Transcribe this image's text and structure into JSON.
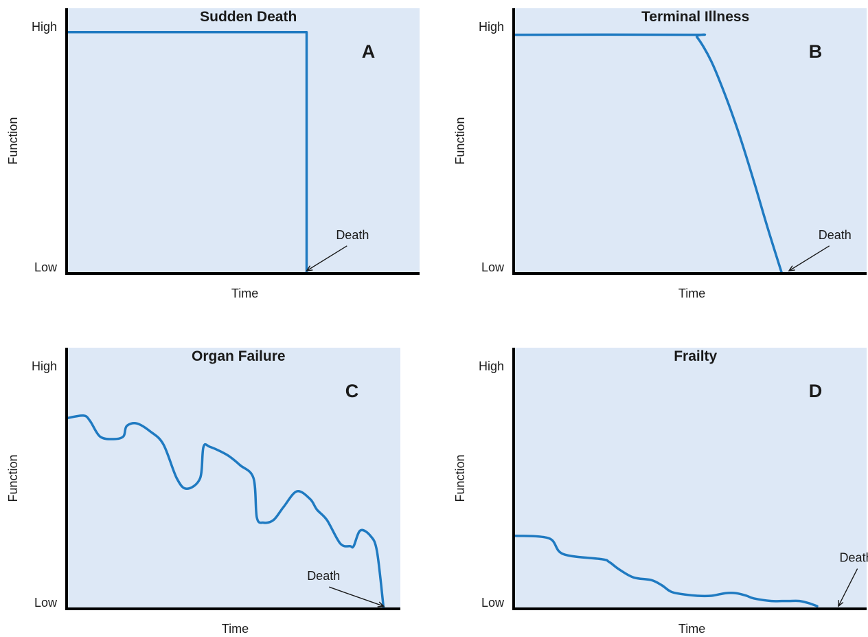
{
  "colors": {
    "plot_bg": "#dde8f6",
    "line": "#1f7ac1",
    "axis": "#000000"
  },
  "chart_data": [
    {
      "type": "line",
      "title": "Sudden Death",
      "panel_label": "A",
      "xlabel": "Time",
      "ylabel": "Function",
      "yticks": [
        "High",
        "Low"
      ],
      "xlim": [
        0,
        100
      ],
      "ylim": [
        0,
        100
      ],
      "annotation": {
        "text": "Death",
        "point": [
          68,
          1
        ],
        "text_at": [
          81,
          13
        ]
      },
      "series": [
        {
          "x": [
            0,
            68,
            68
          ],
          "y": [
            91,
            91,
            0
          ]
        }
      ]
    },
    {
      "type": "line",
      "title": "Terminal Illness",
      "panel_label": "B",
      "xlabel": "Time",
      "ylabel": "Function",
      "yticks": [
        "High",
        "Low"
      ],
      "xlim": [
        0,
        100
      ],
      "ylim": [
        0,
        100
      ],
      "annotation": {
        "text": "Death",
        "point": [
          78,
          1
        ],
        "text_at": [
          91,
          13
        ]
      },
      "series": [
        {
          "x": [
            0,
            50,
            52,
            56,
            60,
            64,
            68,
            72,
            76
          ],
          "y": [
            90,
            90,
            89,
            80,
            67,
            52,
            35,
            17,
            0
          ]
        }
      ]
    },
    {
      "type": "line",
      "title": "Organ Failure",
      "panel_label": "C",
      "xlabel": "Time",
      "ylabel": "Function",
      "yticks": [
        "High",
        "Low"
      ],
      "xlim": [
        0,
        100
      ],
      "ylim": [
        0,
        100
      ],
      "annotation": {
        "text": "Death",
        "point": [
          95,
          1
        ],
        "text_at": [
          77,
          11
        ]
      },
      "series": [
        {
          "x": [
            0,
            5,
            7,
            10,
            14,
            17,
            18,
            21,
            25,
            29,
            33,
            36,
            40,
            41,
            43,
            48,
            52,
            56,
            57,
            59,
            62,
            65,
            69,
            73,
            75,
            78,
            82,
            85,
            86,
            88,
            91,
            93,
            95
          ],
          "y": [
            73,
            74,
            72,
            66,
            65,
            66,
            70,
            71,
            68,
            63,
            50,
            46,
            50,
            62,
            62,
            59,
            55,
            50,
            35,
            33,
            34,
            39,
            45,
            42,
            38,
            34,
            25,
            24,
            24,
            30,
            28,
            22,
            0
          ]
        }
      ]
    },
    {
      "type": "line",
      "title": "Frailty",
      "panel_label": "D",
      "xlabel": "Time",
      "ylabel": "Function",
      "yticks": [
        "High",
        "Low"
      ],
      "xlim": [
        0,
        100
      ],
      "ylim": [
        0,
        100
      ],
      "annotation": {
        "text": "Death",
        "point": [
          92,
          1
        ],
        "text_at": [
          97,
          18
        ]
      },
      "series": [
        {
          "x": [
            0,
            10,
            14,
            25,
            27,
            30,
            34,
            39,
            42,
            44,
            46,
            52,
            56,
            60,
            63,
            66,
            68,
            73,
            76,
            78,
            81,
            84,
            86
          ],
          "y": [
            28,
            27,
            21,
            19,
            18,
            15,
            12,
            11,
            9,
            7,
            6,
            5,
            5,
            6,
            6,
            5,
            4,
            3,
            3,
            3,
            3,
            2,
            1
          ]
        }
      ]
    }
  ]
}
